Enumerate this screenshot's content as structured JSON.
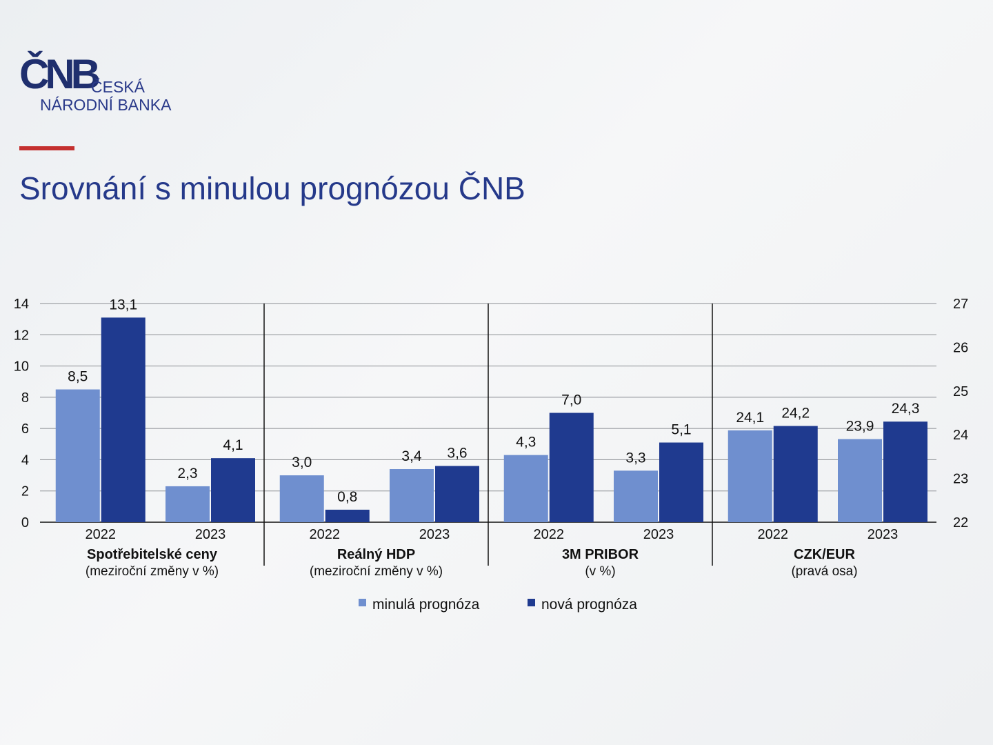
{
  "logo": {
    "mark": "ČNB",
    "line1": "ČESKÁ",
    "line2": "NÁRODNÍ BANKA"
  },
  "slide": {
    "title": "Srovnání s minulou prognózou ČNB"
  },
  "colors": {
    "previous": "#6f8fcf",
    "new": "#1f3a8f",
    "title": "#25398a",
    "accent_rule": "#c4302f"
  },
  "chart_data": {
    "type": "bar",
    "left_axis": {
      "min": 0,
      "max": 14,
      "ticks": [
        0,
        2,
        4,
        6,
        8,
        10,
        12,
        14
      ]
    },
    "right_axis": {
      "min": 22,
      "max": 27,
      "ticks": [
        22,
        23,
        24,
        25,
        26,
        27
      ]
    },
    "grid": true,
    "legend_position": "bottom-center",
    "series": [
      {
        "key": "previous",
        "name": "minulá prognóza"
      },
      {
        "key": "new",
        "name": "nová prognóza"
      }
    ],
    "panels": [
      {
        "name": "Spotřebitelské ceny",
        "subtitle": "(meziroční změny v %)",
        "axis": "left",
        "groups": [
          {
            "year": "2022",
            "previous": 8.5,
            "new": 13.1,
            "previous_label": "8,5",
            "new_label": "13,1"
          },
          {
            "year": "2023",
            "previous": 2.3,
            "new": 4.1,
            "previous_label": "2,3",
            "new_label": "4,1"
          }
        ]
      },
      {
        "name": "Reálný HDP",
        "subtitle": "(meziroční změny v %)",
        "axis": "left",
        "groups": [
          {
            "year": "2022",
            "previous": 3.0,
            "new": 0.8,
            "previous_label": "3,0",
            "new_label": "0,8"
          },
          {
            "year": "2023",
            "previous": 3.4,
            "new": 3.6,
            "previous_label": "3,4",
            "new_label": "3,6"
          }
        ]
      },
      {
        "name": "3M PRIBOR",
        "subtitle": "(v %)",
        "axis": "left",
        "groups": [
          {
            "year": "2022",
            "previous": 4.3,
            "new": 7.0,
            "previous_label": "4,3",
            "new_label": "7,0"
          },
          {
            "year": "2023",
            "previous": 3.3,
            "new": 5.1,
            "previous_label": "3,3",
            "new_label": "5,1"
          }
        ]
      },
      {
        "name": "CZK/EUR",
        "subtitle": "(pravá osa)",
        "axis": "right",
        "groups": [
          {
            "year": "2022",
            "previous": 24.1,
            "new": 24.2,
            "previous_label": "24,1",
            "new_label": "24,2"
          },
          {
            "year": "2023",
            "previous": 23.9,
            "new": 24.3,
            "previous_label": "23,9",
            "new_label": "24,3"
          }
        ]
      }
    ]
  }
}
